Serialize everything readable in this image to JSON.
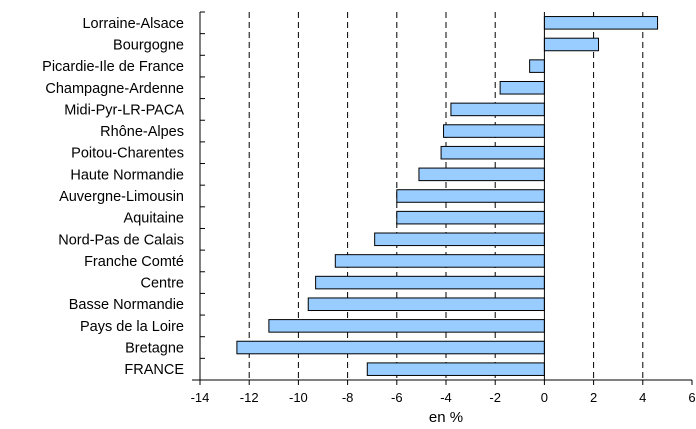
{
  "chart_data": {
    "type": "bar",
    "orientation": "horizontal",
    "title": "",
    "xlabel": "en %",
    "ylabel": "",
    "xlim": [
      -14,
      6
    ],
    "xticks": [
      -14,
      -12,
      -10,
      -8,
      -6,
      -4,
      -2,
      0,
      2,
      4,
      6
    ],
    "grid": "vertical dashed lines at x-axis ticks",
    "bar_color": "#99ccff",
    "categories": [
      "Lorraine-Alsace",
      "Bourgogne",
      "Picardie-Ile de France",
      "Champagne-Ardenne",
      "Midi-Pyr-LR-PACA",
      "Rhône-Alpes",
      "Poitou-Charentes",
      "Haute Normandie",
      "Auvergne-Limousin",
      "Aquitaine",
      "Nord-Pas de Calais",
      "Franche Comté",
      "Centre",
      "Basse Normandie",
      "Pays de la Loire",
      "Bretagne",
      "FRANCE"
    ],
    "values": [
      4.6,
      2.2,
      -0.6,
      -1.8,
      -3.8,
      -4.1,
      -4.2,
      -5.1,
      -6.0,
      -6.0,
      -6.9,
      -8.5,
      -9.3,
      -9.6,
      -11.2,
      -12.5,
      -7.2
    ]
  }
}
